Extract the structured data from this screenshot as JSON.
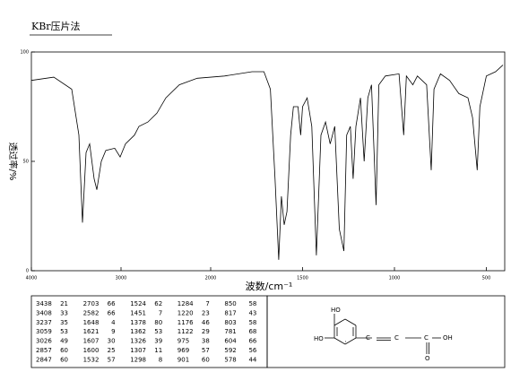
{
  "chart_data": {
    "type": "line",
    "title": "KBr压片法",
    "x_label": "波数/cm⁻¹",
    "y_label": "透过率/%",
    "xlim": [
      4000,
      400
    ],
    "x_scale_break": 2000,
    "ylim": [
      0,
      100
    ],
    "xticks": [
      4000,
      3000,
      2000,
      1500,
      1000,
      500
    ],
    "yticks": [
      0,
      50,
      100
    ],
    "color": "#000000",
    "x": [
      4000,
      3750,
      3550,
      3470,
      3430,
      3390,
      3350,
      3300,
      3270,
      3220,
      3170,
      3070,
      3010,
      2950,
      2850,
      2800,
      2700,
      2600,
      2500,
      2350,
      2150,
      1925,
      1775,
      1710,
      1675,
      1650,
      1630,
      1615,
      1600,
      1585,
      1565,
      1550,
      1525,
      1510,
      1500,
      1475,
      1450,
      1425,
      1400,
      1375,
      1350,
      1325,
      1300,
      1275,
      1260,
      1240,
      1225,
      1210,
      1185,
      1165,
      1145,
      1125,
      1100,
      1085,
      1050,
      975,
      950,
      935,
      900,
      875,
      825,
      800,
      785,
      750,
      700,
      650,
      600,
      575,
      550,
      535,
      500,
      450,
      410
    ],
    "values": [
      87,
      88.5,
      83,
      62,
      22,
      54,
      58,
      42,
      37,
      50,
      55,
      56,
      52,
      58,
      62,
      66,
      68,
      72,
      79,
      85,
      88,
      89,
      91,
      91,
      83,
      42,
      5,
      34,
      21,
      27,
      62,
      75,
      75,
      62,
      75,
      79,
      66,
      7,
      62,
      68,
      58,
      66,
      19,
      9,
      62,
      66,
      42,
      66,
      79,
      50,
      79,
      85,
      30,
      85,
      89,
      90,
      62,
      89,
      85,
      89,
      85,
      46,
      83,
      90,
      87,
      81,
      79,
      70,
      46,
      75,
      89,
      91,
      94
    ]
  },
  "peak_table": {
    "columns": [
      [
        [
          3438,
          21
        ],
        [
          3408,
          33
        ],
        [
          3237,
          35
        ],
        [
          3059,
          53
        ],
        [
          3026,
          49
        ],
        [
          2857,
          60
        ],
        [
          2847,
          60
        ]
      ],
      [
        [
          2703,
          66
        ],
        [
          2582,
          66
        ],
        [
          1648,
          4
        ],
        [
          1621,
          9
        ],
        [
          1607,
          30
        ],
        [
          1600,
          25
        ],
        [
          1532,
          57
        ]
      ],
      [
        [
          1524,
          62
        ],
        [
          1451,
          7
        ],
        [
          1378,
          80
        ],
        [
          1362,
          53
        ],
        [
          1326,
          39
        ],
        [
          1307,
          11
        ],
        [
          1298,
          8
        ]
      ],
      [
        [
          1284,
          7
        ],
        [
          1220,
          23
        ],
        [
          1176,
          46
        ],
        [
          1122,
          29
        ],
        [
          975,
          38
        ],
        [
          969,
          57
        ],
        [
          901,
          60
        ]
      ],
      [
        [
          850,
          58
        ],
        [
          817,
          43
        ],
        [
          803,
          58
        ],
        [
          781,
          68
        ],
        [
          604,
          66
        ],
        [
          592,
          56
        ],
        [
          578,
          44
        ]
      ]
    ]
  },
  "structure": {
    "labels": [
      "HO",
      "HO",
      "OH",
      "O"
    ]
  }
}
